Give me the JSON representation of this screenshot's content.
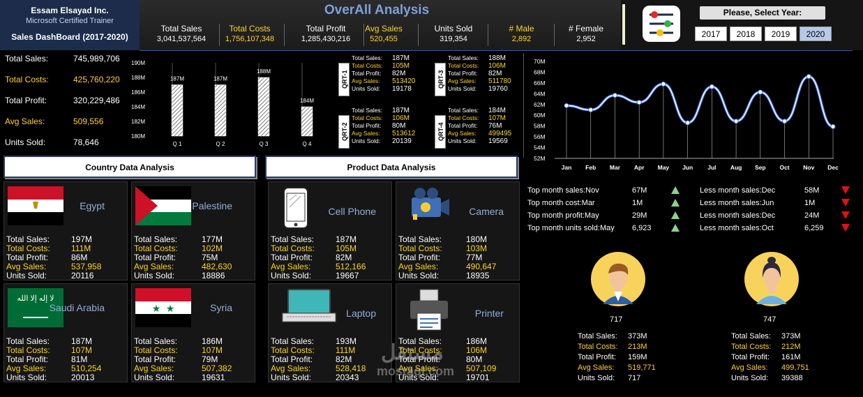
{
  "brand": {
    "name": "Essam Elsayad Inc.",
    "subtitle": "Microsoft Certified Trainer",
    "dashboard": "Sales DashBoard (2017-2020)"
  },
  "header": {
    "title": "OverAll Analysis",
    "kpis": [
      {
        "label": "Total Sales",
        "value": "3,041,537,564",
        "color": "#ffffff"
      },
      {
        "label": "Total Costs",
        "value": "1,756,107,348",
        "color": "#ffd42a"
      },
      {
        "label": "Total Profit",
        "value": "1,285,430,216",
        "color": "#ffffff"
      },
      {
        "label": "Avg Sales",
        "value": "520,455",
        "color": "#ffd42a"
      },
      {
        "label": "Units Sold",
        "value": "319,354",
        "color": "#ffffff"
      },
      {
        "label": "# Male",
        "value": "2,892",
        "color": "#ffd42a"
      },
      {
        "label": "# Female",
        "value": "2,952",
        "color": "#ffffff"
      }
    ]
  },
  "year_filter": {
    "title": "Please, Select Year:",
    "years": [
      "2017",
      "2018",
      "2019",
      "2020"
    ],
    "selected": "2020"
  },
  "summary": [
    {
      "label": "Total Sales:",
      "value": "745,989,706",
      "color": "#ffffff"
    },
    {
      "label": "Total Costs:",
      "value": "425,760,220",
      "color": "#ffd42a"
    },
    {
      "label": "Total Profit:",
      "value": "320,229,486",
      "color": "#ffffff"
    },
    {
      "label": "Avg Sales:",
      "value": "509,556",
      "color": "#ffd42a"
    },
    {
      "label": "Units Sold:",
      "value": "78,646",
      "color": "#ffffff"
    }
  ],
  "quarter_chart": {
    "type": "bar",
    "categories": [
      "Q 1",
      "Q 2",
      "Q 3",
      "Q 4"
    ],
    "values": [
      187,
      187,
      188,
      184
    ],
    "data_labels": [
      "187M",
      "187M",
      "188M",
      "184M"
    ],
    "ylim": [
      180,
      190
    ],
    "yticks": [
      "190M",
      "188M",
      "186M",
      "184M",
      "182M",
      "180M"
    ]
  },
  "quarters": [
    {
      "tag": "QRT-1",
      "rows": [
        [
          "Total Sales:",
          "187M"
        ],
        [
          "Total Costs:",
          "105M"
        ],
        [
          "Total Profit:",
          "82M"
        ],
        [
          "Avg Sales:",
          "513420"
        ],
        [
          "Units Sold:",
          "19178"
        ]
      ]
    },
    {
      "tag": "QRT-2",
      "rows": [
        [
          "Total Sales:",
          "187M"
        ],
        [
          "Total Costs:",
          "106M"
        ],
        [
          "Total Profit:",
          "80M"
        ],
        [
          "Avg Sales:",
          "513612"
        ],
        [
          "Units Sold:",
          "20139"
        ]
      ]
    },
    {
      "tag": "QRT-3",
      "rows": [
        [
          "Total Sales:",
          "188M"
        ],
        [
          "Total Costs:",
          "106M"
        ],
        [
          "Total Profit:",
          "82M"
        ],
        [
          "Avg Sales:",
          "511780"
        ],
        [
          "Units Sold:",
          "19760"
        ]
      ]
    },
    {
      "tag": "QRT-4",
      "rows": [
        [
          "Total Sales:",
          "184M"
        ],
        [
          "Total Costs:",
          "107M"
        ],
        [
          "Total Profit:",
          "76M"
        ],
        [
          "Avg Sales:",
          "499495"
        ],
        [
          "Units Sold:",
          "19569"
        ]
      ]
    }
  ],
  "chart_data": {
    "type": "line",
    "categories": [
      "Jan",
      "Feb",
      "Mar",
      "Apr",
      "May",
      "Jun",
      "Jul",
      "Aug",
      "Sep",
      "Oct",
      "Nov",
      "Dec"
    ],
    "values": [
      61.8,
      61,
      63.7,
      62.4,
      65.8,
      58.6,
      65.3,
      58.9,
      64.3,
      58.9,
      67.2,
      57.9
    ],
    "ylim": [
      52,
      70
    ],
    "yticks": [
      "70M",
      "68M",
      "66M",
      "64M",
      "62M",
      "60M",
      "58M",
      "56M",
      "54M",
      "52M"
    ],
    "title": "",
    "xlabel": "",
    "ylabel": ""
  },
  "sections": {
    "country": "Country Data Analysis",
    "product": "Product Data Analysis"
  },
  "stat_labels": [
    "Total Sales:",
    "Total Costs:",
    "Total Profit:",
    "Avg Sales:",
    "Units Sold:"
  ],
  "countries": [
    {
      "name": "Egypt",
      "values": [
        "197M",
        "111M",
        "86M",
        "537,958",
        "20116"
      ]
    },
    {
      "name": "Palestine",
      "values": [
        "177M",
        "102M",
        "75M",
        "482,630",
        "18886"
      ]
    },
    {
      "name": "Saudi Arabia",
      "values": [
        "187M",
        "107M",
        "81M",
        "510,254",
        "20013"
      ],
      "flag_text": "لا إله إلا الله"
    },
    {
      "name": "Syria",
      "values": [
        "186M",
        "107M",
        "79M",
        "507,382",
        "19631"
      ]
    }
  ],
  "products": [
    {
      "name": "Cell Phone",
      "values": [
        "187M",
        "105M",
        "82M",
        "512,166",
        "19667"
      ]
    },
    {
      "name": "Camera",
      "values": [
        "180M",
        "103M",
        "77M",
        "490,647",
        "18935"
      ]
    },
    {
      "name": "Laptop",
      "values": [
        "193M",
        "111M",
        "82M",
        "528,418",
        "20343"
      ]
    },
    {
      "name": "Printer",
      "values": [
        "186M",
        "106M",
        "80M",
        "507,109",
        "19701"
      ]
    }
  ],
  "top_months": [
    {
      "label": "Top month sales:Nov",
      "value": "67M"
    },
    {
      "label": "Top month cost:Mar",
      "value": "1M"
    },
    {
      "label": "Top month profit:May",
      "value": "29M"
    },
    {
      "label": "Top month units sold:May",
      "value": "6,923"
    }
  ],
  "less_months": [
    {
      "label": "Less month sales:Dec",
      "value": "58M"
    },
    {
      "label": "Less month sales:Jun",
      "value": "1M"
    },
    {
      "label": "Less month sales:Dec",
      "value": "24M"
    },
    {
      "label": "Less month sales:Oct",
      "value": "6,259"
    }
  ],
  "genders": [
    {
      "count": "717",
      "rows": [
        [
          "Total Sales:",
          "373M"
        ],
        [
          "Total Costs:",
          "213M"
        ],
        [
          "Total Profit:",
          "159M"
        ],
        [
          "Avg Sales:",
          "519,771"
        ],
        [
          "Units Sold:",
          "717"
        ]
      ]
    },
    {
      "count": "747",
      "rows": [
        [
          "Total Sales:",
          "373M"
        ],
        [
          "Total Costs:",
          "212M"
        ],
        [
          "Total Profit:",
          "161M"
        ],
        [
          "Avg Sales:",
          "499,751"
        ],
        [
          "Units Sold:",
          "39388"
        ]
      ]
    }
  ],
  "watermark": {
    "arabic": "مستقل",
    "latin": "mostaql.com"
  },
  "colors": {
    "accent": "#ffd42a",
    "title_blue": "#7f9fdc",
    "line": "#4a78d8",
    "up": "#8fd18f",
    "down": "#e0101a"
  }
}
